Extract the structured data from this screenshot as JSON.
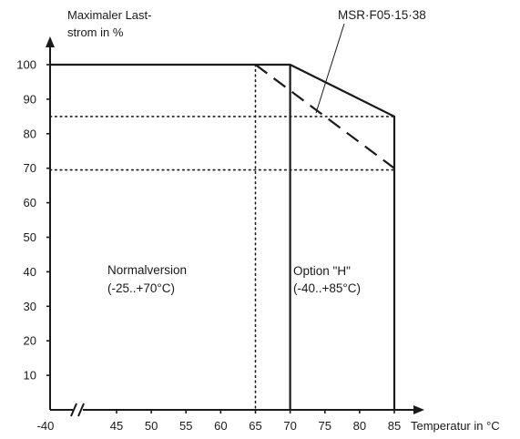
{
  "chart_data": {
    "type": "line",
    "y_axis": {
      "title_line1": "Maximaler Last-",
      "title_line2": "strom in %",
      "ticks": [
        10,
        20,
        30,
        40,
        50,
        60,
        70,
        80,
        90,
        100
      ],
      "range": [
        0,
        110
      ]
    },
    "x_axis": {
      "title": "Temperatur in °C",
      "origin_label": "-40",
      "break": true,
      "ticks": [
        45,
        50,
        55,
        60,
        65,
        70,
        75,
        80,
        85
      ],
      "range": [
        40,
        88
      ]
    },
    "series": [
      {
        "style": "solid",
        "x": [
          40,
          70,
          85,
          85
        ],
        "y": [
          100,
          100,
          85,
          0
        ]
      },
      {
        "style": "solid",
        "x": [
          70,
          70
        ],
        "y": [
          100,
          0
        ]
      },
      {
        "style": "dashed",
        "x": [
          65,
          85
        ],
        "y": [
          100,
          70
        ]
      },
      {
        "style": "dotted",
        "x": [
          65,
          65
        ],
        "y": [
          100,
          0
        ]
      },
      {
        "style": "dotted",
        "x": [
          40,
          85
        ],
        "y": [
          85,
          85
        ]
      },
      {
        "style": "dotted",
        "x": [
          40,
          85
        ],
        "y": [
          69.5,
          69.5
        ]
      }
    ],
    "annotations": {
      "normal_line1": "Normalversion",
      "normal_line2": "(-25..+70°C)",
      "option_line1": "Option \"H\"",
      "option_line2": "(-40..+85°C)",
      "reference": "MSR·F05·15·38"
    },
    "grid": false,
    "legend": "none"
  }
}
